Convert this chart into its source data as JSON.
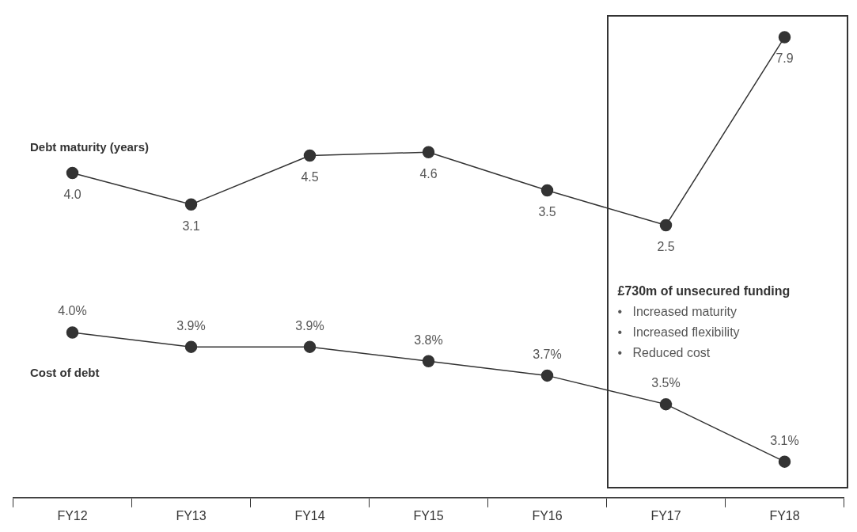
{
  "chart_data": [
    {
      "type": "line",
      "categories": [
        null,
        null,
        null,
        null,
        null,
        null,
        null
      ],
      "series": [
        {
          "name": "Debt maturity (years)",
          "color": "#333333",
          "values": [
            4.0,
            3.1,
            4.5,
            4.6,
            3.5,
            2.5,
            7.9
          ],
          "value_labels": [
            "4.0",
            "3.1",
            "4.5",
            "4.6",
            "3.5",
            "2.5",
            "7.9"
          ]
        }
      ],
      "marker": "circle",
      "line_style": "solid",
      "grid": false,
      "legend": false,
      "tick_labels": false
    },
    {
      "type": "line",
      "categories": [
        "FY12",
        "FY13",
        "FY14",
        "FY15",
        "FY16",
        "FY17",
        "FY18"
      ],
      "series": [
        {
          "name": "Cost of debt",
          "color": "#333333",
          "values": [
            4.0,
            3.9,
            3.9,
            3.8,
            3.7,
            3.5,
            3.1
          ],
          "value_labels": [
            "4.0%",
            "3.9%",
            "3.9%",
            "3.8%",
            "3.7%",
            "3.5%",
            "3.1%"
          ]
        }
      ],
      "marker": "circle",
      "line_style": "solid",
      "grid": false,
      "legend": false,
      "tick_labels": "x",
      "annotations": [
        "£730m of unsecured funding",
        "•   Increased maturity",
        "•   Increased flexibility",
        "•   Reduced cost"
      ]
    }
  ]
}
